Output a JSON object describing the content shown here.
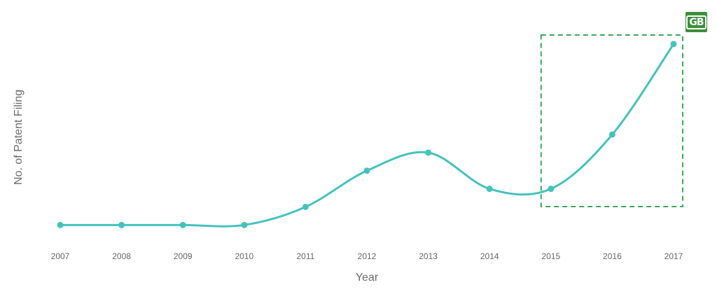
{
  "logo": {
    "text": "GB",
    "color": "#3a8f3a"
  },
  "chart_data": {
    "type": "line",
    "title": "",
    "xlabel": "Year",
    "ylabel": "No. of Patent Filing",
    "x": [
      "2007",
      "2008",
      "2009",
      "2010",
      "2011",
      "2012",
      "2013",
      "2014",
      "2015",
      "2016",
      "2017"
    ],
    "series": [
      {
        "values": [
          0,
          0,
          0,
          0,
          1,
          3,
          4,
          2,
          2,
          5,
          10
        ],
        "color": "#45c2bd"
      }
    ],
    "ylim": [
      -0.8,
      10.5
    ],
    "y_ticks_shown": false,
    "grid": false,
    "highlight": {
      "x_from": "2015",
      "x_to": "2017",
      "style": "dashed",
      "color": "#3aa858"
    }
  }
}
